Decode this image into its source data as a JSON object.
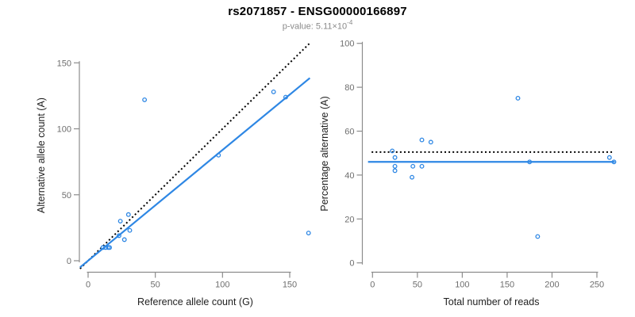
{
  "header": {
    "title": "rs2071857 - ENSG00000166897",
    "pvalue_prefix": "p-value: 5.11×10",
    "pvalue_exponent": "-4"
  },
  "accent_color": "#2E87E4",
  "axis_color": "#8c8c8c",
  "tick_label_color": "#6e6e6e",
  "chart_data": [
    {
      "type": "scatter",
      "panel": "left",
      "xlabel": "Reference allele count (G)",
      "ylabel": "Alternative allele count (A)",
      "xlim": [
        0,
        165
      ],
      "ylim": [
        0,
        165
      ],
      "xticks": [
        0,
        50,
        100,
        150
      ],
      "yticks": [
        0,
        50,
        100,
        150
      ],
      "grid": false,
      "points": [
        [
          11,
          10
        ],
        [
          13,
          10
        ],
        [
          15,
          10
        ],
        [
          16,
          10
        ],
        [
          23,
          19
        ],
        [
          24,
          30
        ],
        [
          27,
          16
        ],
        [
          30,
          35
        ],
        [
          31,
          23
        ],
        [
          42,
          122
        ],
        [
          97,
          80
        ],
        [
          138,
          128
        ],
        [
          147,
          124
        ],
        [
          164,
          21
        ]
      ],
      "lines": [
        {
          "name": "identity-line",
          "style": "dotted",
          "color": "#000000",
          "x1": -6,
          "y1": -6,
          "x2": 164.5,
          "y2": 164.5
        },
        {
          "name": "regression-line",
          "style": "solid",
          "color": "#2E87E4",
          "x1": -6,
          "y1": -5,
          "x2": 165,
          "y2": 138.5
        }
      ]
    },
    {
      "type": "scatter",
      "panel": "right",
      "xlabel": "Total number of reads",
      "ylabel": "Percentage alternative (A)",
      "xlim": [
        0,
        270
      ],
      "ylim": [
        0,
        100
      ],
      "xticks": [
        0,
        50,
        100,
        150,
        200,
        250
      ],
      "yticks": [
        0,
        20,
        40,
        60,
        80,
        100
      ],
      "grid": false,
      "points": [
        [
          22,
          51
        ],
        [
          25,
          48
        ],
        [
          25,
          44
        ],
        [
          25,
          42
        ],
        [
          44,
          39
        ],
        [
          45,
          44
        ],
        [
          55,
          44
        ],
        [
          55,
          56
        ],
        [
          65,
          55
        ],
        [
          162,
          75
        ],
        [
          175,
          46
        ],
        [
          184,
          12
        ],
        [
          264,
          48
        ],
        [
          269,
          46
        ]
      ],
      "lines": [
        {
          "name": "expected-50-line",
          "style": "dotted",
          "color": "#000000",
          "x1": -1,
          "y1": 50.5,
          "x2": 267,
          "y2": 50.5
        },
        {
          "name": "mean-percentage-line",
          "style": "solid",
          "color": "#2E87E4",
          "x1": -5,
          "y1": 46,
          "x2": 270,
          "y2": 46
        }
      ]
    }
  ]
}
